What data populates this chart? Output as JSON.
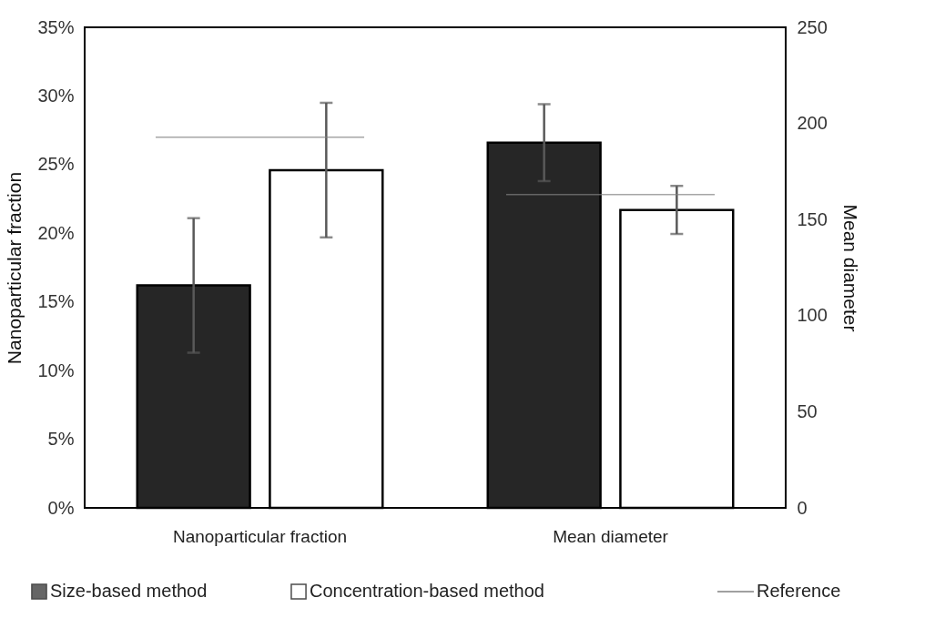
{
  "chart_data": {
    "type": "bar",
    "categories": [
      "Nanoparticular fraction",
      "Mean diameter"
    ],
    "ylabel": "Nanoparticular fraction",
    "y2label": "Mean diameter",
    "series": [
      {
        "name": "Size-based method",
        "color": "#262626",
        "values": [
          16.2,
          null
        ],
        "errors": [
          4.9,
          null
        ]
      },
      {
        "name": "Concentration-based method",
        "color": "#ffffff",
        "values": [
          24.6,
          null
        ],
        "errors": [
          4.9,
          null
        ]
      },
      {
        "color": "#262626",
        "axis": "y2",
        "values": [
          null,
          190
        ],
        "errors": [
          null,
          20
        ]
      },
      {
        "color": "#ffffff",
        "axis": "y2",
        "values": [
          null,
          155
        ],
        "errors": [
          null,
          12.5
        ]
      }
    ],
    "ylim": [
      0,
      35
    ],
    "yticks": [
      {
        "value": 0,
        "label": "0%"
      },
      {
        "value": 5,
        "label": "5%"
      },
      {
        "value": 10,
        "label": "10%"
      },
      {
        "value": 15,
        "label": "15%"
      },
      {
        "value": 20,
        "label": "20%"
      },
      {
        "value": 25,
        "label": "25%"
      },
      {
        "value": 30,
        "label": "30%"
      },
      {
        "value": 35,
        "label": "35%"
      }
    ],
    "y2lim": [
      0,
      250
    ],
    "y2ticks": [
      0,
      50,
      100,
      150,
      200,
      250
    ],
    "ref_lines": [
      {
        "axis": "y",
        "value": 27.0,
        "label": "Reference",
        "color": "#808080"
      },
      {
        "axis": "y2",
        "value": 163,
        "label": null,
        "color": "#808080"
      }
    ],
    "grid": false,
    "legend": "bottom"
  }
}
